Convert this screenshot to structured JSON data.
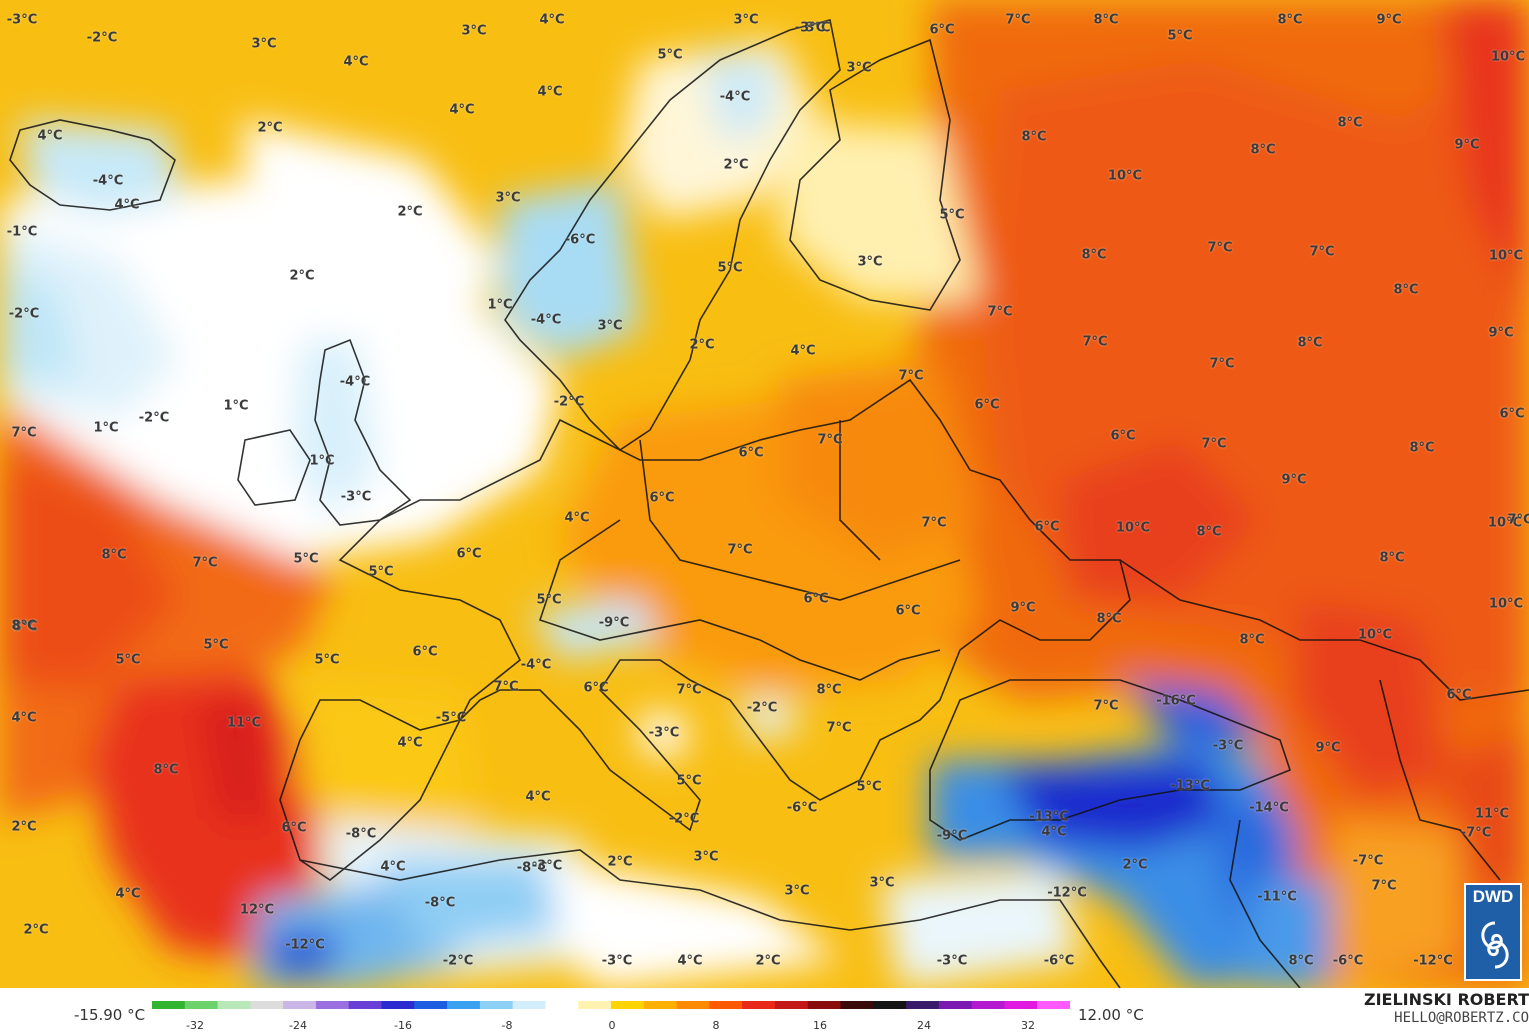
{
  "map": {
    "labels": [
      "-3°C",
      "-2°C",
      "3°C",
      "4°C",
      "3°C",
      "3°C",
      "3°C",
      "-3°C",
      "7°C",
      "8°C",
      "8°C",
      "9°C",
      "10°C",
      "4°C",
      "4°C",
      "4°C",
      "5°C",
      "-4°C",
      "3°C",
      "6°C",
      "5°C",
      "4°C",
      "2°C",
      "2°C",
      "-4°C",
      "4°C",
      "3°C",
      "2°C",
      "-1°C",
      "-6°C",
      "8°C",
      "10°C",
      "8°C",
      "9°C",
      "2°C",
      "1°C",
      "-4°C",
      "5°C",
      "3°C",
      "7°C",
      "7°C",
      "10°C",
      "5°C",
      "-2°C",
      "3°C",
      "2°C",
      "4°C",
      "8°C",
      "7°C",
      "8°C",
      "8°C",
      "9°C",
      "-4°C",
      "-2°C",
      "1°C",
      "-2°C",
      "1°C",
      "7°C",
      "7°C",
      "6°C",
      "6°C",
      "7°C",
      "8°C",
      "7°C",
      "1°C",
      "-3°C",
      "6°C",
      "6°C",
      "9°C",
      "10°C",
      "4°C",
      "7°C",
      "8°C",
      "6°C",
      "8°C",
      "10°C",
      "8°C",
      "7°C",
      "5°C",
      "5°C",
      "6°C",
      "7°C",
      "8°C",
      "7°C",
      "5°C",
      "8°C",
      "6°C",
      "9°C",
      "10°C",
      "7°C",
      "5°C",
      "6°C",
      "8°C",
      "8°C",
      "-9°C",
      "7°C",
      "6°C",
      "10°C",
      "8°C",
      "5°C",
      "5°C",
      "6°C",
      "-4°C",
      "7°C",
      "6°C",
      "7°C",
      "8°C",
      "-16°C",
      "6°C",
      "-3°C",
      "-2°C",
      "7°C",
      "6°C",
      "4°C",
      "11°C",
      "-5°C",
      "4°C",
      "-3°C",
      "7°C",
      "9°C",
      "8°C",
      "5°C",
      "-13°C",
      "-2°C",
      "5°C",
      "-14°C",
      "4°C",
      "-6°C",
      "-13°C",
      "4°C",
      "-9°C",
      "11°C",
      "-8°C",
      "4°C",
      "2°C",
      "2°C",
      "-8°C",
      "-7°C",
      "3°C",
      "3°C",
      "-7°C",
      "7°C",
      "4°C",
      "12°C",
      "2°C",
      "-8°C",
      "-12°C",
      "-11°C",
      "3°C",
      "-12°C",
      "-2°C",
      "-3°C",
      "4°C",
      "2°C",
      "-3°C",
      "-6°C",
      "2°C",
      "8°C",
      "-6°C",
      "-12°C",
      "-3°C"
    ]
  },
  "legend": {
    "min_value": "-15.90 °C",
    "max_value": "12.00 °C",
    "ticks": [
      "-32",
      "-24",
      "-16",
      "-8",
      "0",
      "8",
      "16",
      "24",
      "32"
    ],
    "colors": [
      "#31b531",
      "#6cd36c",
      "#b8e8b8",
      "#dcdcdc",
      "#c9b6e6",
      "#9a6fe0",
      "#6a3fd6",
      "#2a2ad0",
      "#1c5ee0",
      "#3aa0f0",
      "#8cd0f6",
      "#d2eefb",
      "#ffffff",
      "#fff3b0",
      "#ffd400",
      "#ffb000",
      "#ff8a00",
      "#ff5a00",
      "#e8291a",
      "#c41818",
      "#8a0b0b",
      "#3a0a0a",
      "#141414",
      "#3a1a6a",
      "#7a1ab0",
      "#b41ad0",
      "#e01ae0",
      "#ff5aff"
    ]
  },
  "credit": {
    "name": "ZIELINSKI ROBERT",
    "email": "HELLO@ROBERTZ.CO"
  },
  "logo": {
    "text": "DWD"
  }
}
